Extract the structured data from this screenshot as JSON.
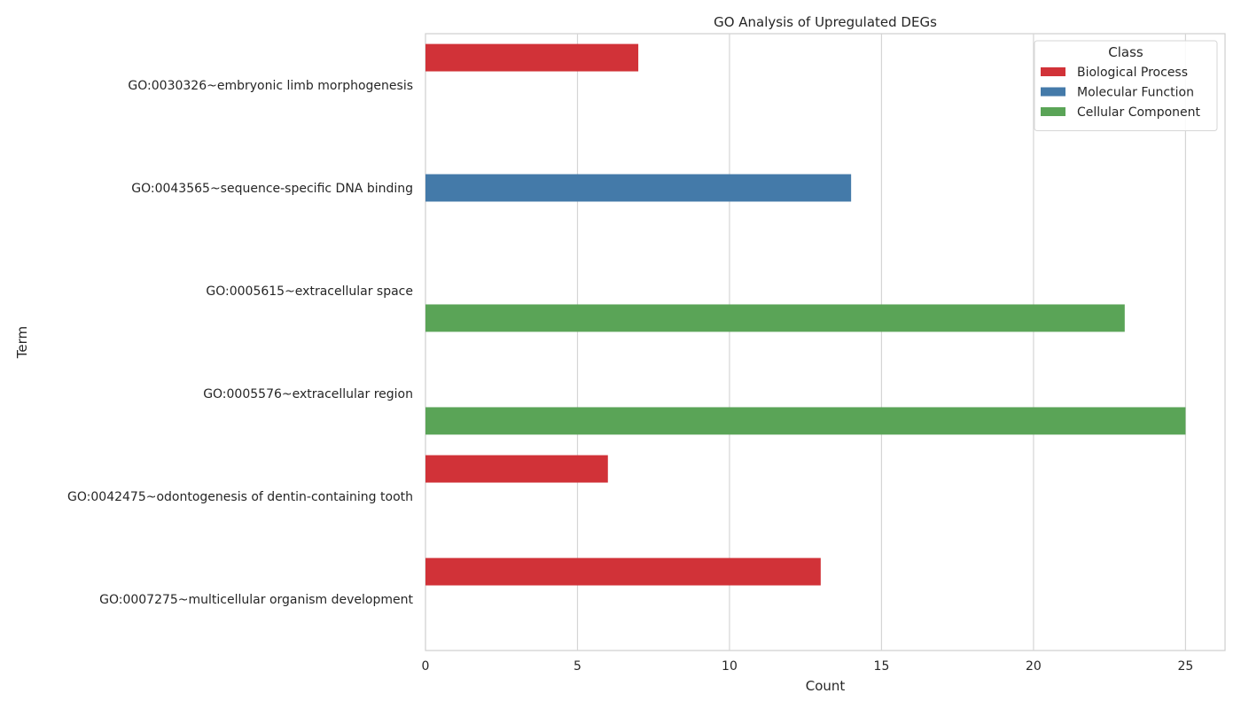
{
  "chart_data": {
    "type": "bar",
    "orientation": "horizontal",
    "title": "GO Analysis of Upregulated DEGs",
    "xlabel": "Count",
    "ylabel": "Term",
    "xlim": [
      0,
      26.3
    ],
    "x_ticks": [
      "0",
      "5",
      "10",
      "15",
      "20",
      "25"
    ],
    "grid": true,
    "categories": [
      "GO:0030326~embryonic limb morphogenesis",
      "GO:0043565~sequence-specific DNA binding",
      "GO:0005615~extracellular space",
      "GO:0005576~extracellular region",
      "GO:0042475~odontogenesis of dentin-containing tooth",
      "GO:0007275~multicellular organism development"
    ],
    "series": [
      {
        "name": "Biological Process",
        "color": "#d13238",
        "values": [
          7,
          null,
          null,
          null,
          6,
          13
        ]
      },
      {
        "name": "Molecular Function",
        "color": "#447aa9",
        "values": [
          null,
          14,
          null,
          null,
          null,
          null
        ]
      },
      {
        "name": "Cellular Component",
        "color": "#5aa457",
        "values": [
          null,
          null,
          23,
          25,
          null,
          null
        ]
      }
    ],
    "legend": {
      "title": "Class",
      "placement": "top-right"
    }
  }
}
